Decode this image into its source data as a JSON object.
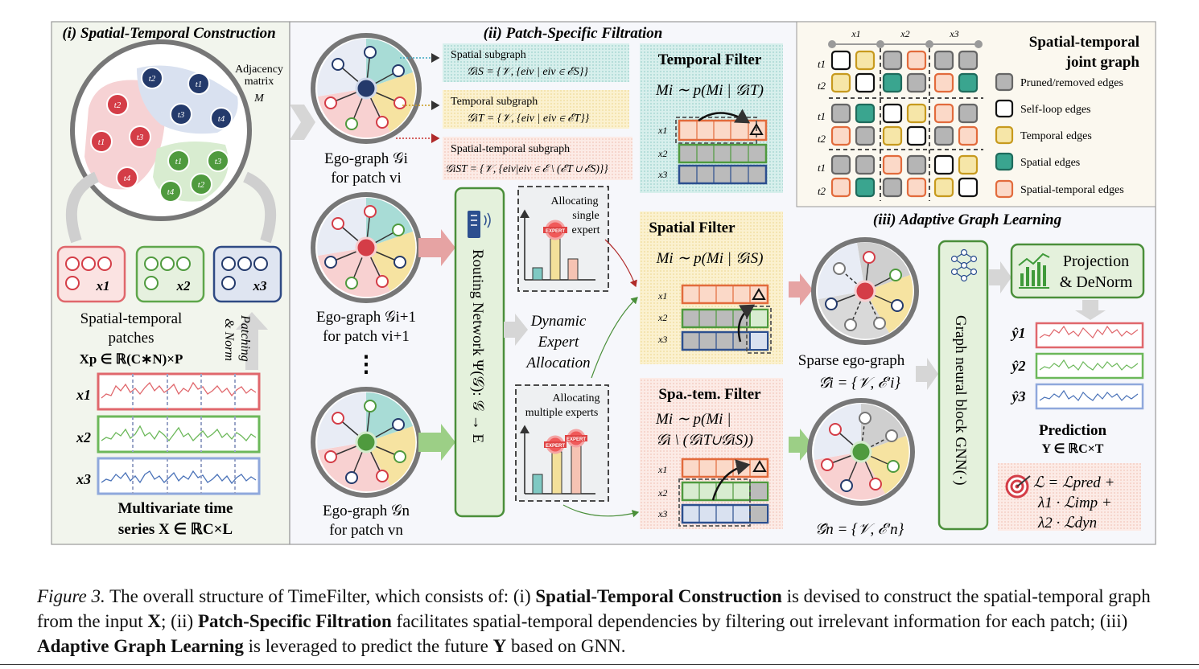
{
  "sections": {
    "s1_title": "(i) Spatial-Temporal Construction",
    "s2_title": "(ii) Patch-Specific Filtration",
    "s3_title": "(iii) Adaptive Graph Learning"
  },
  "s1": {
    "adjacency_line1": "Adjacency",
    "adjacency_line2": "matrix",
    "adjacency_sym": "M",
    "node_labels": [
      "t2",
      "t1",
      "t3",
      "t4",
      "t2",
      "t1",
      "t3",
      "t4",
      "t1",
      "t3",
      "t4",
      "t2"
    ],
    "patch_vars": [
      "x1",
      "x2",
      "x3"
    ],
    "patches_line1": "Spatial-temporal",
    "patches_line2": "patches",
    "patches_formula": "Xp ∈ ℝ(C∗N)×P",
    "patching_line1": "Patching",
    "patching_line2": "& Norm",
    "series_vars": [
      "x1",
      "x2",
      "x3"
    ],
    "mts_line1": "Multivariate time",
    "mts_line2": "series X ∈ ℝC×L"
  },
  "s2": {
    "ego_labels": [
      {
        "l1": "Ego-graph 𝒢i",
        "l2": "for patch vi"
      },
      {
        "l1": "Ego-graph 𝒢i+1",
        "l2": "for patch vi+1"
      },
      {
        "l1": "Ego-graph 𝒢n",
        "l2": "for patch vn"
      }
    ],
    "dots": "⋮",
    "sub_spatial_title": "Spatial subgraph",
    "sub_spatial_formula": "𝒢iS = {𝒱, {eiv | eiv ∈ ℰS}}",
    "sub_temporal_title": "Temporal subgraph",
    "sub_temporal_formula": "𝒢iT = {𝒱, {eiv | eiv ∈ ℰT}}",
    "sub_st_title": "Spatial-temporal subgraph",
    "sub_st_formula": "𝒢iST = {𝒱, {eiv|eiv ∈ ℰ \\ (ℰT ∪ ℰS)}}",
    "temporal_filter_title": "Temporal Filter",
    "temporal_filter_formula": "Mi ∼ p(Mi | 𝒢iT)",
    "spatial_filter_title": "Spatial Filter",
    "spatial_filter_formula": "Mi ∼ p(Mi | 𝒢iS)",
    "st_filter_title": "Spa.-tem. Filter",
    "st_filter_formula1": "Mi ∼ p(Mi |",
    "st_filter_formula2": "𝒢i \\ (𝒢iT∪𝒢iS))",
    "filter_rows": [
      "x1",
      "x2",
      "x3"
    ],
    "routing": "Routing Network Ψ(𝒢): 𝒢 → E",
    "alloc_single": [
      "Allocating",
      "single",
      "expert"
    ],
    "alloc_multi": [
      "Allocating",
      "multiple experts"
    ],
    "expert_badge": "EXPERT",
    "dynamic": [
      "Dynamic",
      "Expert",
      "Allocation"
    ]
  },
  "joint": {
    "title_line1": "Spatial-temporal",
    "title_line2": "joint graph",
    "col_labels": [
      "x1",
      "x2",
      "x3"
    ],
    "row_labels": [
      "t1",
      "t2",
      "t1",
      "t2",
      "t1",
      "t2"
    ],
    "legend": [
      {
        "label": "Pruned/removed edges",
        "color": "#b5b5b5",
        "border": "#666666"
      },
      {
        "label": "Self-loop edges",
        "color": "#ffffff",
        "border": "#111111"
      },
      {
        "label": "Temporal edges",
        "color": "#f6e6a8",
        "border": "#c79a1e"
      },
      {
        "label": "Spatial edges",
        "color": "#3aa58f",
        "border": "#1f6b5c"
      },
      {
        "label": "Spatial-temporal edges",
        "color": "#fbd9c8",
        "border": "#e26b3c"
      }
    ],
    "matrix": [
      [
        "S",
        "T",
        "P",
        "X",
        "P",
        "P"
      ],
      [
        "T",
        "S",
        "P",
        "P",
        "X",
        "P"
      ],
      [
        "P",
        "P",
        "S",
        "T",
        "X",
        "P"
      ],
      [
        "X",
        "P",
        "T",
        "S",
        "P",
        "X"
      ],
      [
        "P",
        "P",
        "X",
        "P",
        "S",
        "T"
      ],
      [
        "X",
        "P",
        "P",
        "X",
        "T",
        "S"
      ]
    ]
  },
  "s3": {
    "sparse1_line1": "Sparse ego-graph",
    "sparse1_line2": "𝒢̂i = {𝒱, ℰ′i}",
    "sparse2_line": "𝒢̂n = {𝒱, ℰ′n}",
    "gnn": "Graph neural block GNN(·)",
    "projection_line1": "Projection",
    "projection_line2": "& DeNorm",
    "outputs": [
      "ŷ1",
      "ŷ2",
      "ŷ3"
    ],
    "prediction_line1": "Prediction",
    "prediction_line2": "Y ∈ ℝC×T",
    "loss_line1": "ℒ = ℒpred +",
    "loss_line2": "λ1 · ℒimp +",
    "loss_line3": "λ2 · ℒdyn"
  },
  "colors": {
    "red": "#e8666e",
    "green": "#6cb85a",
    "navy": "#243a6b",
    "teal": "#7fc9c3",
    "yellow": "#f6e3a1",
    "orange": "#f3b48f",
    "blue": "#4a72b8"
  },
  "caption": {
    "fig": "Figure 3.",
    "t1": " The overall structure of TimeFilter, which consists of: (i) ",
    "b1": "Spatial-Temporal Construction",
    "t2": " is devised to construct the spatial-temporal graph from the input ",
    "b2": "X",
    "t3": "; (ii) ",
    "b3": "Patch-Specific Filtration",
    "t4": " facilitates spatial-temporal dependencies by filtering out irrelevant information for each patch; (iii) ",
    "b4": "Adaptive Graph Learning",
    "t5": " is leveraged to predict the future ",
    "b5": "Y",
    "t6": " based on GNN."
  }
}
